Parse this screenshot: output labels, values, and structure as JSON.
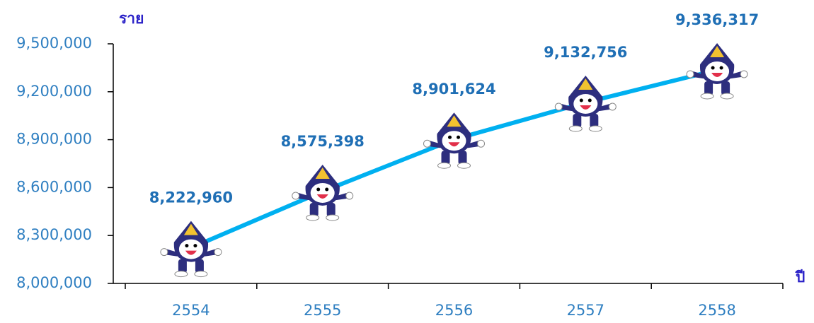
{
  "chart_data": {
    "type": "line",
    "y_label": "ราย",
    "x_label": "ปี",
    "categories": [
      "2554",
      "2555",
      "2556",
      "2557",
      "2558"
    ],
    "values": [
      8222960,
      8575398,
      8901624,
      9132756,
      9336317
    ],
    "value_labels": [
      "8,222,960",
      "8,575,398",
      "8,901,624",
      "9,132,756",
      "9,336,317"
    ],
    "color": "#00b0f0",
    "ylim": [
      8000000,
      9500000
    ],
    "yticks": [
      {
        "value": 8000000,
        "label": "8,000,000"
      },
      {
        "value": 8300000,
        "label": "8,300,000"
      },
      {
        "value": 8600000,
        "label": "8,600,000"
      },
      {
        "value": 8900000,
        "label": "8,900,000"
      },
      {
        "value": 9200000,
        "label": "9,200,000"
      },
      {
        "value": 9500000,
        "label": "9,500,000"
      }
    ],
    "grid": false
  }
}
